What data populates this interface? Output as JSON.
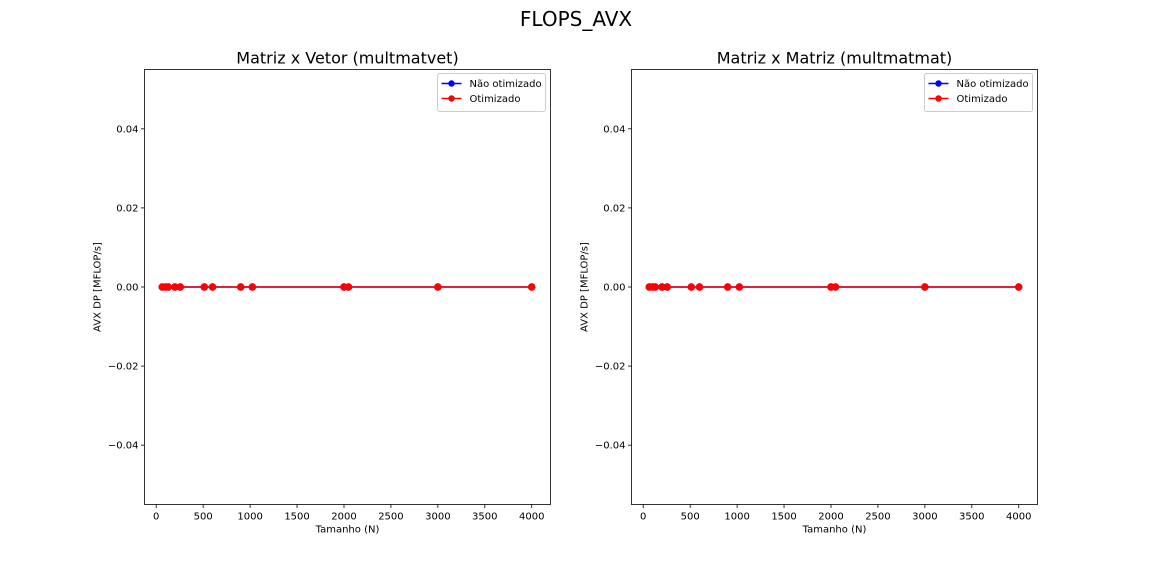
{
  "figure": {
    "title": "FLOPS_AVX"
  },
  "chart_data": [
    {
      "type": "line",
      "title": "Matriz x Vetor (multmatvet)",
      "xlabel": "Tamanho (N)",
      "ylabel": "AVX DP [MFLOP/s]",
      "xlim": [
        -125,
        4200
      ],
      "ylim": [
        -0.055,
        0.055
      ],
      "xticks": [
        0,
        500,
        1000,
        1500,
        2000,
        2500,
        3000,
        3500,
        4000
      ],
      "xtick_labels": [
        "0",
        "500",
        "1000",
        "1500",
        "2000",
        "2500",
        "3000",
        "3500",
        "4000"
      ],
      "yticks": [
        -0.04,
        -0.02,
        0.0,
        0.02,
        0.04
      ],
      "ytick_labels": [
        "−0.04",
        "−0.02",
        "0.00",
        "0.02",
        "0.04"
      ],
      "x": [
        64,
        100,
        128,
        200,
        256,
        512,
        600,
        900,
        1024,
        2000,
        2048,
        3000,
        4000
      ],
      "series": [
        {
          "name": "Não otimizado",
          "color": "#0000ff",
          "marker": "circle",
          "values": [
            0,
            0,
            0,
            0,
            0,
            0,
            0,
            0,
            0,
            0,
            0,
            0,
            0
          ]
        },
        {
          "name": "Otimizado",
          "color": "#ff0000",
          "marker": "circle",
          "values": [
            0,
            0,
            0,
            0,
            0,
            0,
            0,
            0,
            0,
            0,
            0,
            0,
            0
          ]
        }
      ],
      "legend": "upper right",
      "grid": false
    },
    {
      "type": "line",
      "title": "Matriz x Matriz (multmatmat)",
      "xlabel": "Tamanho (N)",
      "ylabel": "AVX DP [MFLOP/s]",
      "xlim": [
        -125,
        4200
      ],
      "ylim": [
        -0.055,
        0.055
      ],
      "xticks": [
        0,
        500,
        1000,
        1500,
        2000,
        2500,
        3000,
        3500,
        4000
      ],
      "xtick_labels": [
        "0",
        "500",
        "1000",
        "1500",
        "2000",
        "2500",
        "3000",
        "3500",
        "4000"
      ],
      "yticks": [
        -0.04,
        -0.02,
        0.0,
        0.02,
        0.04
      ],
      "ytick_labels": [
        "−0.04",
        "−0.02",
        "0.00",
        "0.02",
        "0.04"
      ],
      "x": [
        64,
        100,
        128,
        200,
        256,
        512,
        600,
        900,
        1024,
        2000,
        2048,
        3000,
        4000
      ],
      "series": [
        {
          "name": "Não otimizado",
          "color": "#0000ff",
          "marker": "circle",
          "values": [
            0,
            0,
            0,
            0,
            0,
            0,
            0,
            0,
            0,
            0,
            0,
            0,
            0
          ]
        },
        {
          "name": "Otimizado",
          "color": "#ff0000",
          "marker": "circle",
          "values": [
            0,
            0,
            0,
            0,
            0,
            0,
            0,
            0,
            0,
            0,
            0,
            0,
            0
          ]
        }
      ],
      "legend": "upper right",
      "grid": false
    }
  ]
}
